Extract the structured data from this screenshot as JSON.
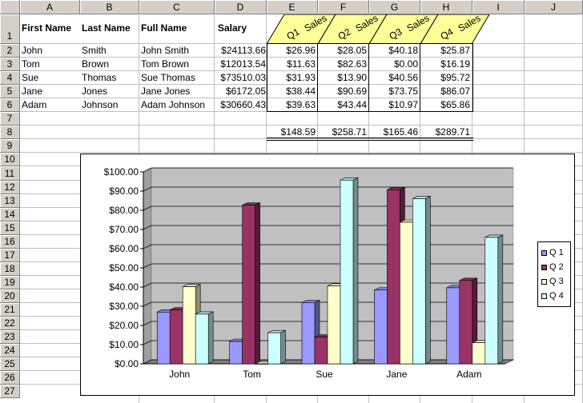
{
  "columns": [
    "A",
    "B",
    "C",
    "D",
    "E",
    "F",
    "G",
    "H",
    "I",
    "J"
  ],
  "rows": [
    "1",
    "2",
    "3",
    "4",
    "5",
    "6",
    "7",
    "8",
    "9",
    "10",
    "11",
    "12",
    "13",
    "14",
    "15",
    "16",
    "17",
    "18",
    "19",
    "20",
    "21",
    "22",
    "23",
    "24",
    "25",
    "26",
    "27"
  ],
  "headers": {
    "first_name": "First Name",
    "last_name": "Last Name",
    "full_name": "Full Name",
    "salary": "Salary",
    "quarters": [
      {
        "q": "Q1",
        "s": "Sales"
      },
      {
        "q": "Q2",
        "s": "Sales"
      },
      {
        "q": "Q3",
        "s": "Sales"
      },
      {
        "q": "Q4",
        "s": "Sales"
      }
    ]
  },
  "people": [
    {
      "first": "John",
      "last": "Smith",
      "full": "John Smith",
      "salary": "$24113.66",
      "q": [
        "$26.96",
        "$28.05",
        "$40.18",
        "$25.87"
      ]
    },
    {
      "first": "Tom",
      "last": "Brown",
      "full": "Tom Brown",
      "salary": "$12013.54",
      "q": [
        "$11.63",
        "$82.63",
        "$0.00",
        "$16.19"
      ]
    },
    {
      "first": "Sue",
      "last": "Thomas",
      "full": "Sue Thomas",
      "salary": "$73510.03",
      "q": [
        "$31.93",
        "$13.90",
        "$40.56",
        "$95.72"
      ]
    },
    {
      "first": "Jane",
      "last": "Jones",
      "full": "Jane Jones",
      "salary": "$6172.05",
      "q": [
        "$38.44",
        "$90.69",
        "$73.75",
        "$86.07"
      ]
    },
    {
      "first": "Adam",
      "last": "Johnson",
      "full": "Adam Johnson",
      "salary": "$30660.43",
      "q": [
        "$39.63",
        "$43.44",
        "$10.97",
        "$65.86"
      ]
    }
  ],
  "totals": [
    "$148.59",
    "$258.71",
    "$165.46",
    "$289.71"
  ],
  "colors": {
    "grid": "#c0c0c0",
    "header_bg": "#d4d0c8",
    "sales_header_bg": "#ffff99",
    "plot_bg": "#c0c0c0",
    "q1": "#9999ff",
    "q2": "#993366",
    "q3": "#ffffcc",
    "q4": "#ccffff"
  },
  "chart_data": {
    "type": "bar",
    "categories": [
      "John",
      "Tom",
      "Sue",
      "Jane",
      "Adam"
    ],
    "series": [
      {
        "name": "Q 1",
        "values": [
          26.96,
          11.63,
          31.93,
          38.44,
          39.63
        ]
      },
      {
        "name": "Q 2",
        "values": [
          28.05,
          82.63,
          13.9,
          90.69,
          43.44
        ]
      },
      {
        "name": "Q 3",
        "values": [
          40.18,
          0.0,
          40.56,
          73.75,
          10.97
        ]
      },
      {
        "name": "Q 4",
        "values": [
          25.87,
          16.19,
          95.72,
          86.07,
          65.86
        ]
      }
    ],
    "yticks": [
      "$0.00",
      "$10.00",
      "$20.00",
      "$30.00",
      "$40.00",
      "$50.00",
      "$60.00",
      "$70.00",
      "$80.00",
      "$90.00",
      "$100.00"
    ],
    "ylim": [
      0,
      100
    ],
    "grid": true,
    "legend": "right",
    "style": "3d-clustered-column"
  }
}
